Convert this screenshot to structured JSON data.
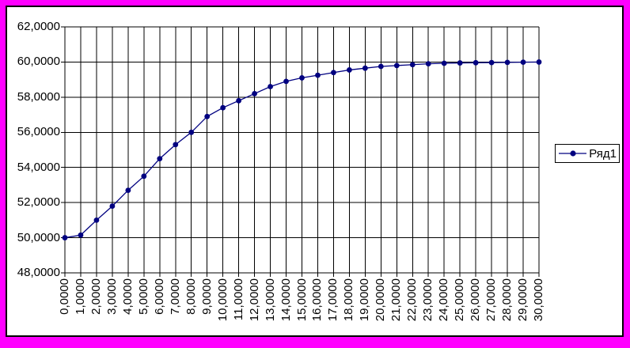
{
  "frame": {
    "background_color": "#FF00FF",
    "chart_background": "#FFFFFF",
    "chart_border_color": "#000000"
  },
  "chart_data": {
    "type": "line",
    "title": "",
    "xlabel": "",
    "ylabel": "",
    "grid": "both",
    "gridline_color": "#000000",
    "xlim": [
      0,
      30
    ],
    "ylim": [
      48,
      62
    ],
    "x_tick_step": 1,
    "y_tick_step": 2,
    "legend_position": "right",
    "series": [
      {
        "name": "Ряд1",
        "color": "#000080",
        "marker": "circle",
        "x": [
          0,
          1,
          2,
          3,
          4,
          5,
          6,
          7,
          8,
          9,
          10,
          11,
          12,
          13,
          14,
          15,
          16,
          17,
          18,
          19,
          20,
          21,
          22,
          23,
          24,
          25,
          26,
          27,
          28,
          29,
          30
        ],
        "values": [
          50.0,
          50.15,
          51.0,
          51.8,
          52.7,
          53.5,
          54.5,
          55.3,
          56.0,
          56.9,
          57.4,
          57.8,
          58.2,
          58.6,
          58.9,
          59.1,
          59.25,
          59.4,
          59.55,
          59.65,
          59.75,
          59.8,
          59.85,
          59.9,
          59.93,
          59.95,
          59.96,
          59.97,
          59.98,
          59.99,
          60.0
        ]
      }
    ],
    "x_tick_labels": [
      "0,0000",
      "1,0000",
      "2,0000",
      "3,0000",
      "4,0000",
      "5,0000",
      "6,0000",
      "7,0000",
      "8,0000",
      "9,0000",
      "10,0000",
      "11,0000",
      "12,0000",
      "13,0000",
      "14,0000",
      "15,0000",
      "16,0000",
      "17,0000",
      "18,0000",
      "19,0000",
      "20,0000",
      "21,0000",
      "22,0000",
      "23,0000",
      "24,0000",
      "25,0000",
      "26,0000",
      "27,0000",
      "28,0000",
      "29,0000",
      "30,0000"
    ],
    "y_tick_labels": [
      "48,0000",
      "50,0000",
      "52,0000",
      "54,0000",
      "56,0000",
      "58,0000",
      "60,0000",
      "62,0000"
    ]
  }
}
